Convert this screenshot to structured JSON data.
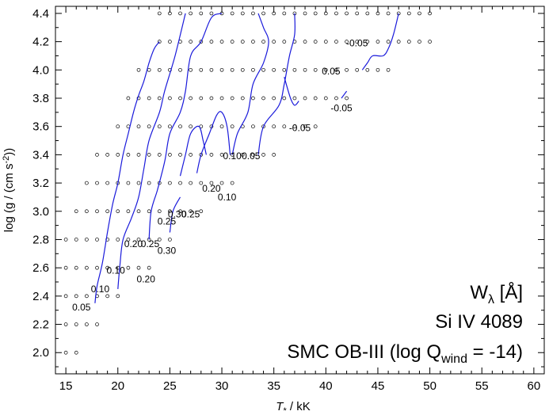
{
  "chart_data": {
    "type": "scatter",
    "xlabel": "T",
    "xlabel_sub": "*",
    "xlabel_unit": " / kK",
    "ylabel": "log (g / (cm s",
    "ylabel_sup": "-2",
    "ylabel_tail": "))",
    "xlim": [
      14,
      61
    ],
    "ylim": [
      1.85,
      4.45
    ],
    "xticks": [
      15,
      20,
      25,
      30,
      35,
      40,
      45,
      50,
      55,
      60
    ],
    "yticks": [
      2.0,
      2.2,
      2.4,
      2.6,
      2.8,
      3.0,
      3.2,
      3.4,
      3.6,
      3.8,
      4.0,
      4.2,
      4.4
    ],
    "annotations": {
      "line1_main": "W",
      "line1_sub": "λ",
      "line1_rest": " [Å]",
      "line2": "Si IV 4089",
      "line3_main": "SMC OB-III (log Q",
      "line3_sub": "wind",
      "line3_rest": " = -14)"
    },
    "grid_points": [
      [
        15,
        2.0
      ],
      [
        16,
        2.0
      ],
      [
        15,
        2.2
      ],
      [
        16,
        2.2
      ],
      [
        17,
        2.2
      ],
      [
        18,
        2.2
      ],
      [
        15,
        2.4
      ],
      [
        16,
        2.4
      ],
      [
        17,
        2.4
      ],
      [
        18,
        2.4
      ],
      [
        19,
        2.4
      ],
      [
        20,
        2.4
      ],
      [
        15,
        2.6
      ],
      [
        16,
        2.6
      ],
      [
        17,
        2.6
      ],
      [
        18,
        2.6
      ],
      [
        19,
        2.6
      ],
      [
        20,
        2.6
      ],
      [
        21,
        2.6
      ],
      [
        22,
        2.6
      ],
      [
        23,
        2.6
      ],
      [
        15,
        2.8
      ],
      [
        16,
        2.8
      ],
      [
        17,
        2.8
      ],
      [
        18,
        2.8
      ],
      [
        19,
        2.8
      ],
      [
        20,
        2.8
      ],
      [
        21,
        2.8
      ],
      [
        22,
        2.8
      ],
      [
        23,
        2.8
      ],
      [
        24,
        2.8
      ],
      [
        25,
        2.8
      ],
      [
        16,
        3.0
      ],
      [
        17,
        3.0
      ],
      [
        18,
        3.0
      ],
      [
        19,
        3.0
      ],
      [
        20,
        3.0
      ],
      [
        21,
        3.0
      ],
      [
        22,
        3.0
      ],
      [
        23,
        3.0
      ],
      [
        24,
        3.0
      ],
      [
        25,
        3.0
      ],
      [
        26,
        3.0
      ],
      [
        27,
        3.0
      ],
      [
        28,
        3.0
      ],
      [
        17,
        3.2
      ],
      [
        18,
        3.2
      ],
      [
        19,
        3.2
      ],
      [
        20,
        3.2
      ],
      [
        21,
        3.2
      ],
      [
        22,
        3.2
      ],
      [
        23,
        3.2
      ],
      [
        24,
        3.2
      ],
      [
        25,
        3.2
      ],
      [
        26,
        3.2
      ],
      [
        27,
        3.2
      ],
      [
        28,
        3.2
      ],
      [
        29,
        3.2
      ],
      [
        30,
        3.2
      ],
      [
        31,
        3.2
      ],
      [
        18,
        3.4
      ],
      [
        19,
        3.4
      ],
      [
        20,
        3.4
      ],
      [
        21,
        3.4
      ],
      [
        22,
        3.4
      ],
      [
        23,
        3.4
      ],
      [
        24,
        3.4
      ],
      [
        25,
        3.4
      ],
      [
        26,
        3.4
      ],
      [
        27,
        3.4
      ],
      [
        28,
        3.4
      ],
      [
        29,
        3.4
      ],
      [
        30,
        3.4
      ],
      [
        31,
        3.4
      ],
      [
        32,
        3.4
      ],
      [
        33,
        3.4
      ],
      [
        34,
        3.4
      ],
      [
        35,
        3.4
      ],
      [
        20,
        3.6
      ],
      [
        21,
        3.6
      ],
      [
        22,
        3.6
      ],
      [
        23,
        3.6
      ],
      [
        24,
        3.6
      ],
      [
        25,
        3.6
      ],
      [
        26,
        3.6
      ],
      [
        27,
        3.6
      ],
      [
        28,
        3.6
      ],
      [
        29,
        3.6
      ],
      [
        30,
        3.6
      ],
      [
        31,
        3.6
      ],
      [
        32,
        3.6
      ],
      [
        33,
        3.6
      ],
      [
        34,
        3.6
      ],
      [
        35,
        3.6
      ],
      [
        36,
        3.6
      ],
      [
        37,
        3.6
      ],
      [
        38,
        3.6
      ],
      [
        39,
        3.6
      ],
      [
        21,
        3.8
      ],
      [
        22,
        3.8
      ],
      [
        23,
        3.8
      ],
      [
        24,
        3.8
      ],
      [
        25,
        3.8
      ],
      [
        26,
        3.8
      ],
      [
        27,
        3.8
      ],
      [
        28,
        3.8
      ],
      [
        29,
        3.8
      ],
      [
        30,
        3.8
      ],
      [
        31,
        3.8
      ],
      [
        32,
        3.8
      ],
      [
        33,
        3.8
      ],
      [
        34,
        3.8
      ],
      [
        35,
        3.8
      ],
      [
        36,
        3.8
      ],
      [
        37,
        3.8
      ],
      [
        38,
        3.8
      ],
      [
        39,
        3.8
      ],
      [
        40,
        3.8
      ],
      [
        41,
        3.8
      ],
      [
        42,
        3.8
      ],
      [
        22,
        4.0
      ],
      [
        23,
        4.0
      ],
      [
        24,
        4.0
      ],
      [
        25,
        4.0
      ],
      [
        26,
        4.0
      ],
      [
        27,
        4.0
      ],
      [
        28,
        4.0
      ],
      [
        29,
        4.0
      ],
      [
        30,
        4.0
      ],
      [
        31,
        4.0
      ],
      [
        32,
        4.0
      ],
      [
        33,
        4.0
      ],
      [
        34,
        4.0
      ],
      [
        35,
        4.0
      ],
      [
        36,
        4.0
      ],
      [
        37,
        4.0
      ],
      [
        38,
        4.0
      ],
      [
        39,
        4.0
      ],
      [
        40,
        4.0
      ],
      [
        41,
        4.0
      ],
      [
        42,
        4.0
      ],
      [
        43,
        4.0
      ],
      [
        44,
        4.0
      ],
      [
        45,
        4.0
      ],
      [
        46,
        4.0
      ],
      [
        24,
        4.2
      ],
      [
        25,
        4.2
      ],
      [
        26,
        4.2
      ],
      [
        27,
        4.2
      ],
      [
        28,
        4.2
      ],
      [
        29,
        4.2
      ],
      [
        30,
        4.2
      ],
      [
        31,
        4.2
      ],
      [
        32,
        4.2
      ],
      [
        33,
        4.2
      ],
      [
        34,
        4.2
      ],
      [
        35,
        4.2
      ],
      [
        36,
        4.2
      ],
      [
        37,
        4.2
      ],
      [
        38,
        4.2
      ],
      [
        39,
        4.2
      ],
      [
        40,
        4.2
      ],
      [
        41,
        4.2
      ],
      [
        42,
        4.2
      ],
      [
        43,
        4.2
      ],
      [
        44,
        4.2
      ],
      [
        45,
        4.2
      ],
      [
        46,
        4.2
      ],
      [
        47,
        4.2
      ],
      [
        48,
        4.2
      ],
      [
        49,
        4.2
      ],
      [
        50,
        4.2
      ],
      [
        24,
        4.4
      ],
      [
        25,
        4.4
      ],
      [
        26,
        4.4
      ],
      [
        27,
        4.4
      ],
      [
        28,
        4.4
      ],
      [
        29,
        4.4
      ],
      [
        30,
        4.4
      ],
      [
        31,
        4.4
      ],
      [
        32,
        4.4
      ],
      [
        33,
        4.4
      ],
      [
        34,
        4.4
      ],
      [
        35,
        4.4
      ],
      [
        36,
        4.4
      ],
      [
        37,
        4.4
      ],
      [
        38,
        4.4
      ],
      [
        39,
        4.4
      ],
      [
        40,
        4.4
      ],
      [
        41,
        4.4
      ],
      [
        42,
        4.4
      ],
      [
        43,
        4.4
      ],
      [
        44,
        4.4
      ],
      [
        45,
        4.4
      ],
      [
        46,
        4.4
      ],
      [
        47,
        4.4
      ],
      [
        48,
        4.4
      ],
      [
        49,
        4.4
      ],
      [
        50,
        4.4
      ]
    ],
    "contours": [
      {
        "level": 0.05,
        "points": [
          [
            17.8,
            2.35
          ],
          [
            18.0,
            2.47
          ],
          [
            18.5,
            2.63
          ],
          [
            19.0,
            2.85
          ],
          [
            19.5,
            3.05
          ],
          [
            20.0,
            3.2
          ],
          [
            20.5,
            3.4
          ],
          [
            21.0,
            3.55
          ],
          [
            21.5,
            3.7
          ],
          [
            22.0,
            3.82
          ],
          [
            22.5,
            3.92
          ],
          [
            23.0,
            4.05
          ],
          [
            23.5,
            4.15
          ],
          [
            24.0,
            4.2
          ]
        ]
      },
      {
        "level": 0.1,
        "points": [
          [
            20.0,
            2.45
          ],
          [
            20.2,
            2.62
          ],
          [
            20.5,
            2.8
          ],
          [
            21.3,
            2.95
          ],
          [
            22.0,
            3.1
          ],
          [
            22.5,
            3.3
          ],
          [
            23.0,
            3.5
          ],
          [
            24.0,
            3.7
          ],
          [
            24.5,
            3.85
          ],
          [
            25.5,
            4.1
          ],
          [
            26.5,
            4.4
          ]
        ]
      },
      {
        "level": 0.1,
        "points": [
          [
            27.6,
            3.27
          ],
          [
            28.0,
            3.4
          ],
          [
            28.8,
            3.55
          ],
          [
            29.5,
            3.68
          ],
          [
            30.0,
            3.7
          ],
          [
            30.5,
            3.6
          ],
          [
            30.8,
            3.4
          ]
        ]
      },
      {
        "level": 0.2,
        "points": [
          [
            23.0,
            2.8
          ],
          [
            23.2,
            3.0
          ],
          [
            23.8,
            3.15
          ],
          [
            24.5,
            3.35
          ],
          [
            25.0,
            3.55
          ],
          [
            26.0,
            3.7
          ],
          [
            26.5,
            3.85
          ],
          [
            27.0,
            4.1
          ],
          [
            28.0,
            4.2
          ],
          [
            29.0,
            4.37
          ],
          [
            30.0,
            4.4
          ]
        ]
      },
      {
        "level": 0.2,
        "points": [
          [
            26.0,
            3.25
          ],
          [
            26.5,
            3.4
          ],
          [
            27.0,
            3.55
          ],
          [
            27.8,
            3.6
          ],
          [
            28.2,
            3.5
          ],
          [
            28.5,
            3.4
          ]
        ]
      },
      {
        "level": 0.25,
        "points": [
          [
            25.0,
            2.85
          ],
          [
            25.3,
            3.0
          ],
          [
            26.0,
            3.1
          ]
        ]
      },
      {
        "level": 0.05,
        "points": [
          [
            31.0,
            3.4
          ],
          [
            31.5,
            3.55
          ],
          [
            32.5,
            3.7
          ],
          [
            33.0,
            3.9
          ],
          [
            34.0,
            4.05
          ],
          [
            34.5,
            4.2
          ],
          [
            34.0,
            4.3
          ],
          [
            33.5,
            4.4
          ]
        ]
      },
      {
        "level": 0.05,
        "points": [
          [
            33.5,
            3.4
          ],
          [
            34.0,
            3.6
          ],
          [
            35.5,
            3.75
          ],
          [
            36.0,
            3.9
          ],
          [
            36.5,
            4.1
          ],
          [
            37.0,
            4.25
          ],
          [
            37.0,
            4.4
          ]
        ]
      },
      {
        "level": 0.05,
        "points": [
          [
            36.0,
            3.95
          ],
          [
            36.6,
            3.8
          ],
          [
            37.0,
            3.75
          ],
          [
            37.4,
            3.78
          ]
        ]
      },
      {
        "level": 0.05,
        "points": [
          [
            41.5,
            3.8
          ],
          [
            42.0,
            3.85
          ]
        ]
      },
      {
        "level": 0.05,
        "points": [
          [
            43.5,
            4.0
          ],
          [
            44.0,
            4.05
          ],
          [
            44.5,
            4.1
          ],
          [
            45.5,
            4.1
          ],
          [
            46.0,
            4.15
          ],
          [
            46.5,
            4.25
          ],
          [
            47.0,
            4.4
          ]
        ]
      }
    ],
    "contour_labels": [
      {
        "x": 16.5,
        "y": 2.32,
        "text": "0.05"
      },
      {
        "x": 18.3,
        "y": 2.45,
        "text": "0.10"
      },
      {
        "x": 19.8,
        "y": 2.58,
        "text": "0.10"
      },
      {
        "x": 22.7,
        "y": 2.52,
        "text": "0.20"
      },
      {
        "x": 21.5,
        "y": 2.77,
        "text": "0.20"
      },
      {
        "x": 23.1,
        "y": 2.77,
        "text": "0.25"
      },
      {
        "x": 24.7,
        "y": 2.72,
        "text": "0.30"
      },
      {
        "x": 24.7,
        "y": 2.93,
        "text": "0.25"
      },
      {
        "x": 25.7,
        "y": 2.98,
        "text": "0.30"
      },
      {
        "x": 27.0,
        "y": 2.98,
        "text": "0.25"
      },
      {
        "x": 29.0,
        "y": 3.16,
        "text": "0.20"
      },
      {
        "x": 30.5,
        "y": 3.1,
        "text": "0.10"
      },
      {
        "x": 31.0,
        "y": 3.39,
        "text": "0.10"
      },
      {
        "x": 32.8,
        "y": 3.39,
        "text": "0.05"
      },
      {
        "x": 37.5,
        "y": 3.59,
        "text": "-0.05"
      },
      {
        "x": 41.5,
        "y": 3.73,
        "text": "-0.05"
      },
      {
        "x": 40.5,
        "y": 3.99,
        "text": "0.05"
      },
      {
        "x": 43.0,
        "y": 4.19,
        "text": "-0.05"
      }
    ]
  }
}
